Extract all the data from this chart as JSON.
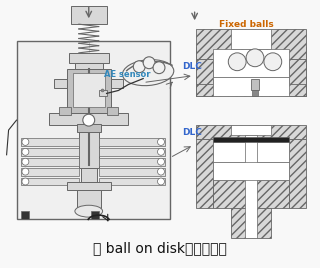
{
  "title": "図 ball on disk摩擦試験機",
  "title_fontsize": 10,
  "bg_color": "#f8f8f8",
  "label_fixed_balls": "Fixed balls",
  "label_dlc_top": "DLC",
  "label_dlc_bottom": "DLC",
  "label_ae_sensor": "AE sensor",
  "label_color_fixed": "#cc6600",
  "label_color_dlc": "#3366cc",
  "label_color_ae": "#3388bb",
  "line_color": "#666666",
  "light_gray": "#d8d8d8",
  "mid_gray": "#c0c0c0",
  "dark_gray": "#888888",
  "white": "#ffffff",
  "near_black": "#222222"
}
